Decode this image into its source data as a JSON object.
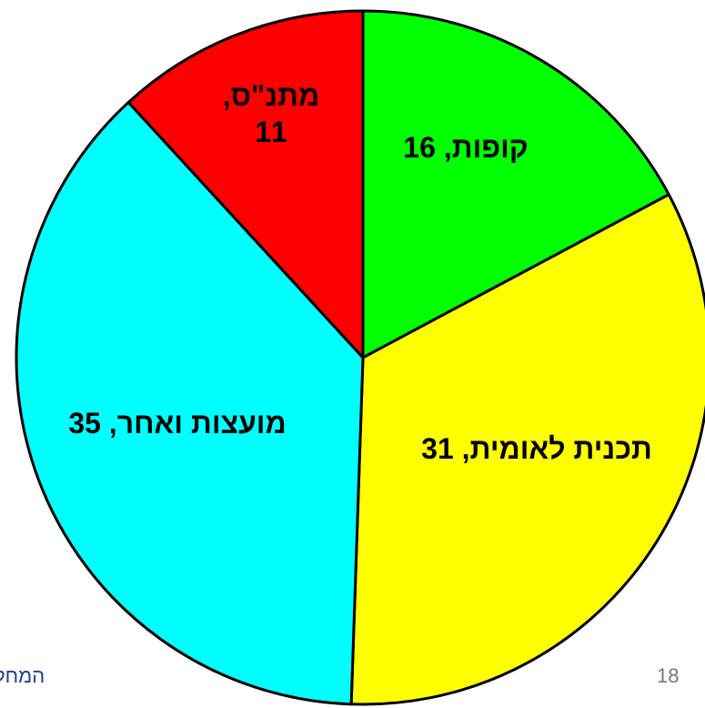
{
  "chart_data": {
    "type": "pie",
    "categories": [
      "קופות",
      "תכנית לאומית",
      "מועצות ואחר",
      "מתנ\"ס"
    ],
    "values": [
      16,
      31,
      35,
      11
    ],
    "value_labels": [
      "קופות, 16",
      "תכנית לאומית, 31",
      "מועצות ואחר, 35",
      "מתנ\"ס, 11"
    ],
    "colors": [
      "#00ff00",
      "#ffff00",
      "#00ffff",
      "#ff0000"
    ]
  },
  "footer": {
    "page_number": "18",
    "text": "המחל"
  }
}
